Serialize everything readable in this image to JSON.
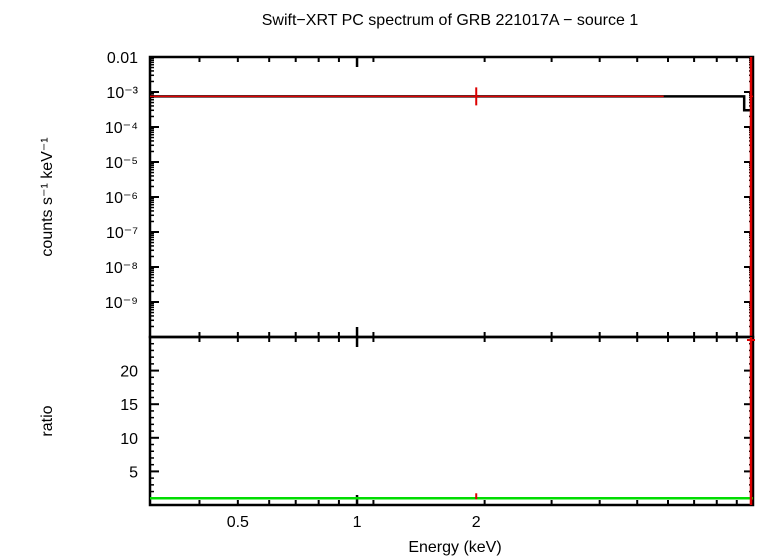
{
  "chart_data": [
    {
      "type": "scatter",
      "panel": "spectrum",
      "title": "Swift−XRT PC spectrum of GRB 221017A − source 1",
      "xlabel": "",
      "ylabel": "counts s⁻¹ keV⁻¹",
      "x_scale": "log",
      "y_scale": "log",
      "xlim": [
        0.3,
        10
      ],
      "ylim": [
        1e-10,
        0.01
      ],
      "y_ticks": [
        {
          "value": 0.01,
          "label": "0.01"
        },
        {
          "value": 0.001,
          "label": "10⁻³"
        },
        {
          "value": 0.0001,
          "label": "10⁻⁴"
        },
        {
          "value": 1e-05,
          "label": "10⁻⁵"
        },
        {
          "value": 1e-06,
          "label": "10⁻⁶"
        },
        {
          "value": 1e-07,
          "label": "10⁻⁷"
        },
        {
          "value": 1e-08,
          "label": "10⁻⁸"
        },
        {
          "value": 1e-09,
          "label": "10⁻⁹"
        }
      ],
      "model": {
        "color": "#000000",
        "x": [
          0.3,
          9.5,
          9.5,
          10
        ],
        "y": [
          0.00075,
          0.00075,
          0.0003,
          0.0003
        ]
      },
      "data": {
        "color": "#dd0000",
        "x": [
          2.0,
          10.0
        ],
        "y": [
          0.00075,
          0.00075
        ],
        "xerr_lo": [
          1.9,
          0.1
        ],
        "xerr_hi": [
          3.95,
          0.0
        ]
      }
    },
    {
      "type": "scatter",
      "panel": "ratio",
      "xlabel": "Energy (keV)",
      "ylabel": "ratio",
      "x_scale": "log",
      "xlim": [
        0.3,
        10
      ],
      "ylim": [
        0,
        25
      ],
      "x_ticks": [
        {
          "value": 0.5,
          "label": "0.5"
        },
        {
          "value": 1,
          "label": "1"
        },
        {
          "value": 2,
          "label": "2"
        }
      ],
      "y_ticks": [
        {
          "value": 5,
          "label": "5"
        },
        {
          "value": 10,
          "label": "10"
        },
        {
          "value": 15,
          "label": "15"
        },
        {
          "value": 20,
          "label": "20"
        }
      ],
      "unity_line": {
        "color": "#00dd00",
        "value": 1
      },
      "data": {
        "color": "#dd0000",
        "x": [
          2.0
        ],
        "y": [
          1.0
        ],
        "xerr_lo": [
          1.9
        ],
        "xerr_hi": [
          3.95
        ]
      }
    }
  ]
}
